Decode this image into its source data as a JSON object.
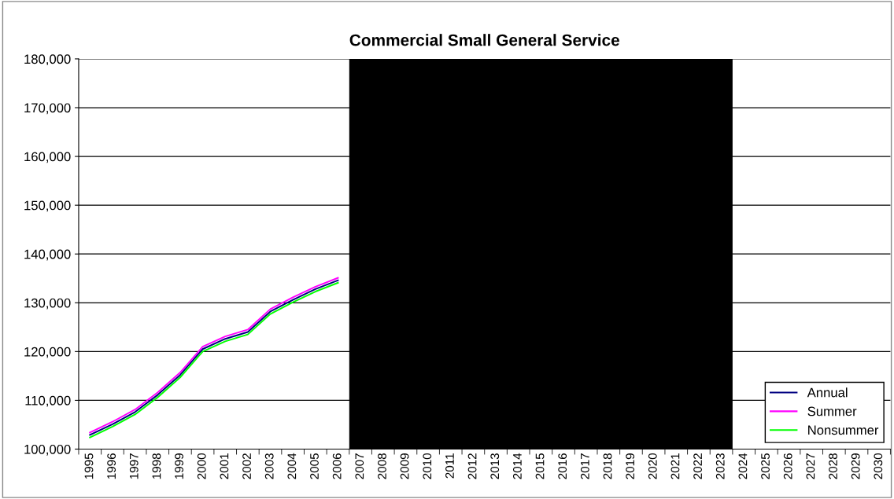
{
  "chart_data": {
    "type": "line",
    "title": "Commercial Small General Service",
    "categories": [
      "1995",
      "1996",
      "1997",
      "1998",
      "1999",
      "2000",
      "2001",
      "2002",
      "2003",
      "2004",
      "2005",
      "2006",
      "2007",
      "2008",
      "2009",
      "2010",
      "2011",
      "2012",
      "2013",
      "2014",
      "2015",
      "2016",
      "2017",
      "2018",
      "2019",
      "2020",
      "2021",
      "2022",
      "2023",
      "2024",
      "2025",
      "2026",
      "2027",
      "2028",
      "2029",
      "2030"
    ],
    "series": [
      {
        "name": "Annual",
        "color": "#000080",
        "values": [
          102900,
          105100,
          107600,
          111100,
          115200,
          120500,
          122600,
          124000,
          128200,
          130600,
          132800,
          134600,
          null,
          null,
          null,
          null,
          null,
          null,
          null,
          null,
          null,
          null,
          null,
          null,
          null,
          null,
          null,
          null,
          null,
          null,
          null,
          null,
          null,
          null,
          null,
          null
        ]
      },
      {
        "name": "Summer",
        "color": "#ff00ff",
        "values": [
          103400,
          105600,
          108100,
          111600,
          115700,
          121000,
          123100,
          124500,
          128700,
          131100,
          133300,
          135100,
          null,
          null,
          null,
          null,
          null,
          null,
          null,
          null,
          null,
          null,
          null,
          null,
          null,
          null,
          null,
          null,
          null,
          null,
          null,
          null,
          null,
          null,
          null,
          null
        ]
      },
      {
        "name": "Nonsummer",
        "color": "#00ff00",
        "values": [
          102400,
          104600,
          107100,
          110600,
          114700,
          120000,
          122100,
          123500,
          127700,
          130100,
          132300,
          134100,
          null,
          null,
          null,
          null,
          null,
          null,
          null,
          null,
          null,
          null,
          null,
          null,
          null,
          null,
          null,
          null,
          null,
          null,
          null,
          null,
          null,
          null,
          null,
          null
        ]
      }
    ],
    "bands": [
      {
        "axis": "x",
        "from": "2007",
        "to": "2023",
        "color": "#000000"
      }
    ],
    "ylim": [
      100000,
      180000
    ],
    "yticks": [
      {
        "value": 100000,
        "label": "100,000"
      },
      {
        "value": 110000,
        "label": "110,000"
      },
      {
        "value": 120000,
        "label": "120,000"
      },
      {
        "value": 130000,
        "label": "130,000"
      },
      {
        "value": 140000,
        "label": "140,000"
      },
      {
        "value": 150000,
        "label": "150,000"
      },
      {
        "value": 160000,
        "label": "160,000"
      },
      {
        "value": 170000,
        "label": "170,000"
      },
      {
        "value": 180000,
        "label": "180,000"
      }
    ],
    "grid": "y",
    "legend": "bottom right",
    "marker": "none",
    "line_style": "solid"
  }
}
